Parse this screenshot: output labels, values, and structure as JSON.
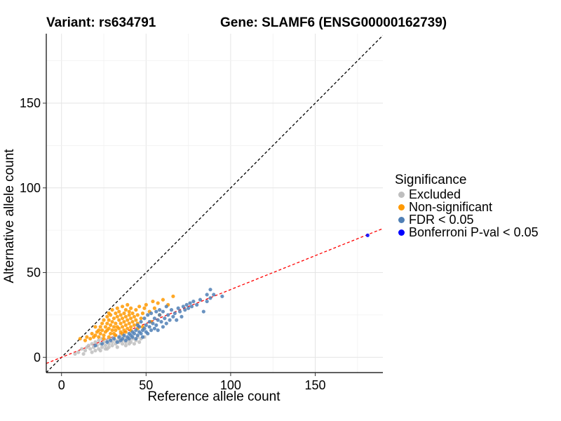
{
  "titles": {
    "variant": "Variant: rs634791",
    "gene": "Gene: SLAMF6 (ENSG00000162739)"
  },
  "legend": {
    "title": "Significance",
    "items": [
      {
        "label": "Excluded",
        "color": "#bebebe"
      },
      {
        "label": "Non-significant",
        "color": "#ff9900"
      },
      {
        "label": "FDR < 0.05",
        "color": "#4f7fb5"
      },
      {
        "label": "Bonferroni P-val < 0.05",
        "color": "#0000ff"
      }
    ]
  },
  "chart_data": {
    "type": "scatter",
    "xlabel": "Reference allele count",
    "ylabel": "Alternative allele count",
    "xlim": [
      -9,
      190
    ],
    "ylim": [
      -9,
      191
    ],
    "xticks": [
      0,
      50,
      100,
      150
    ],
    "yticks": [
      0,
      50,
      100,
      150
    ],
    "grid": true,
    "legend_position": "right",
    "reference_lines": [
      {
        "name": "identity",
        "slope": 1,
        "intercept": 0,
        "color": "#000000",
        "style": "dashed"
      },
      {
        "name": "fit",
        "slope": 0.4,
        "intercept": 0,
        "color": "#ff0000",
        "style": "dashed"
      }
    ],
    "series": [
      {
        "name": "Excluded",
        "color": "#bebebe",
        "points": [
          [
            10,
            3
          ],
          [
            12,
            5
          ],
          [
            14,
            4
          ],
          [
            15,
            6
          ],
          [
            16,
            7
          ],
          [
            17,
            5
          ],
          [
            18,
            8
          ],
          [
            19,
            6
          ],
          [
            20,
            4
          ],
          [
            20,
            9
          ],
          [
            21,
            7
          ],
          [
            22,
            5
          ],
          [
            22,
            10
          ],
          [
            23,
            8
          ],
          [
            24,
            6
          ],
          [
            24,
            11
          ],
          [
            25,
            9
          ],
          [
            26,
            7
          ],
          [
            26,
            5
          ],
          [
            27,
            10
          ],
          [
            28,
            8
          ],
          [
            28,
            6
          ],
          [
            29,
            11
          ],
          [
            30,
            9
          ],
          [
            30,
            7
          ],
          [
            31,
            12
          ],
          [
            32,
            10
          ],
          [
            32,
            8
          ],
          [
            33,
            6
          ],
          [
            34,
            11
          ],
          [
            34,
            9
          ],
          [
            35,
            13
          ],
          [
            36,
            10
          ],
          [
            36,
            8
          ],
          [
            37,
            12
          ],
          [
            38,
            9
          ],
          [
            38,
            7
          ],
          [
            39,
            11
          ],
          [
            40,
            10
          ],
          [
            40,
            8
          ],
          [
            41,
            9
          ],
          [
            42,
            11
          ],
          [
            43,
            8
          ],
          [
            44,
            10
          ],
          [
            45,
            12
          ],
          [
            46,
            9
          ],
          [
            47,
            11
          ],
          [
            49,
            12
          ],
          [
            8,
            2
          ],
          [
            13,
            2
          ],
          [
            18,
            3
          ],
          [
            23,
            4
          ],
          [
            27,
            5
          ]
        ]
      },
      {
        "name": "Non-significant",
        "color": "#ff9900",
        "points": [
          [
            11,
            11
          ],
          [
            14,
            10
          ],
          [
            15,
            12
          ],
          [
            17,
            11
          ],
          [
            18,
            14
          ],
          [
            19,
            12
          ],
          [
            20,
            13
          ],
          [
            21,
            15
          ],
          [
            22,
            16
          ],
          [
            22,
            12
          ],
          [
            23,
            18
          ],
          [
            23,
            14
          ],
          [
            24,
            20
          ],
          [
            24,
            16
          ],
          [
            25,
            13
          ],
          [
            25,
            22
          ],
          [
            26,
            18
          ],
          [
            26,
            15
          ],
          [
            27,
            24
          ],
          [
            27,
            20
          ],
          [
            27,
            16
          ],
          [
            28,
            22
          ],
          [
            28,
            17
          ],
          [
            28,
            26
          ],
          [
            29,
            19
          ],
          [
            29,
            14
          ],
          [
            29,
            25
          ],
          [
            30,
            21
          ],
          [
            30,
            16
          ],
          [
            30,
            28
          ],
          [
            31,
            23
          ],
          [
            31,
            18
          ],
          [
            31,
            14
          ],
          [
            32,
            26
          ],
          [
            32,
            20
          ],
          [
            32,
            16
          ],
          [
            33,
            24
          ],
          [
            33,
            18
          ],
          [
            33,
            29
          ],
          [
            34,
            22
          ],
          [
            34,
            17
          ],
          [
            34,
            27
          ],
          [
            35,
            20
          ],
          [
            35,
            25
          ],
          [
            35,
            15
          ],
          [
            36,
            23
          ],
          [
            36,
            18
          ],
          [
            36,
            30
          ],
          [
            37,
            21
          ],
          [
            37,
            26
          ],
          [
            37,
            16
          ],
          [
            38,
            24
          ],
          [
            38,
            19
          ],
          [
            38,
            28
          ],
          [
            39,
            22
          ],
          [
            39,
            17
          ],
          [
            39,
            31
          ],
          [
            40,
            25
          ],
          [
            40,
            20
          ],
          [
            40,
            27
          ],
          [
            41,
            23
          ],
          [
            41,
            18
          ],
          [
            41,
            29
          ],
          [
            42,
            21
          ],
          [
            42,
            26
          ],
          [
            43,
            24
          ],
          [
            43,
            19
          ],
          [
            44,
            28
          ],
          [
            44,
            22
          ],
          [
            45,
            25
          ],
          [
            45,
            20
          ],
          [
            46,
            30
          ],
          [
            47,
            23
          ],
          [
            48,
            26
          ],
          [
            49,
            29
          ],
          [
            50,
            31
          ],
          [
            52,
            27
          ],
          [
            54,
            33
          ],
          [
            55,
            29
          ],
          [
            57,
            32
          ],
          [
            60,
            34
          ],
          [
            63,
            31
          ],
          [
            66,
            36
          ],
          [
            20,
            18
          ],
          [
            25,
            11
          ],
          [
            28,
            12
          ],
          [
            32,
            13
          ],
          [
            36,
            14
          ],
          [
            38,
            15
          ],
          [
            41,
            16
          ],
          [
            45,
            17
          ],
          [
            48,
            18
          ],
          [
            53,
            21
          ],
          [
            58,
            25
          ]
        ]
      },
      {
        "name": "FDR < 0.05",
        "color": "#4f7fb5",
        "points": [
          [
            20,
            7
          ],
          [
            24,
            8
          ],
          [
            27,
            9
          ],
          [
            29,
            10
          ],
          [
            31,
            11
          ],
          [
            33,
            9
          ],
          [
            34,
            12
          ],
          [
            35,
            10
          ],
          [
            36,
            11
          ],
          [
            37,
            13
          ],
          [
            38,
            10
          ],
          [
            39,
            12
          ],
          [
            40,
            14
          ],
          [
            40,
            11
          ],
          [
            41,
            13
          ],
          [
            42,
            15
          ],
          [
            42,
            12
          ],
          [
            43,
            14
          ],
          [
            44,
            16
          ],
          [
            44,
            11
          ],
          [
            45,
            13
          ],
          [
            46,
            15
          ],
          [
            46,
            18
          ],
          [
            47,
            14
          ],
          [
            48,
            16
          ],
          [
            48,
            12
          ],
          [
            49,
            17
          ],
          [
            50,
            15
          ],
          [
            50,
            19
          ],
          [
            51,
            14
          ],
          [
            52,
            18
          ],
          [
            52,
            21
          ],
          [
            53,
            16
          ],
          [
            54,
            20
          ],
          [
            55,
            17
          ],
          [
            55,
            23
          ],
          [
            56,
            19
          ],
          [
            57,
            22
          ],
          [
            57,
            16
          ],
          [
            58,
            25
          ],
          [
            59,
            21
          ],
          [
            60,
            18
          ],
          [
            60,
            27
          ],
          [
            61,
            23
          ],
          [
            62,
            20
          ],
          [
            63,
            25
          ],
          [
            64,
            22
          ],
          [
            65,
            28
          ],
          [
            66,
            24
          ],
          [
            67,
            26
          ],
          [
            68,
            22
          ],
          [
            69,
            29
          ],
          [
            70,
            27
          ],
          [
            71,
            24
          ],
          [
            72,
            30
          ],
          [
            73,
            28
          ],
          [
            74,
            31
          ],
          [
            75,
            29
          ],
          [
            76,
            32
          ],
          [
            77,
            30
          ],
          [
            78,
            33
          ],
          [
            80,
            31
          ],
          [
            82,
            34
          ],
          [
            84,
            27
          ],
          [
            86,
            33
          ],
          [
            88,
            35
          ],
          [
            86,
            37
          ],
          [
            88,
            40
          ],
          [
            90,
            37
          ],
          [
            95,
            36
          ],
          [
            45,
            19
          ],
          [
            47,
            21
          ],
          [
            49,
            23
          ],
          [
            51,
            25
          ],
          [
            53,
            26
          ],
          [
            56,
            27
          ],
          [
            58,
            28
          ],
          [
            62,
            30
          ]
        ]
      },
      {
        "name": "Bonferroni P-val < 0.05",
        "color": "#0000ff",
        "points": [
          [
            181,
            72
          ]
        ]
      }
    ]
  }
}
